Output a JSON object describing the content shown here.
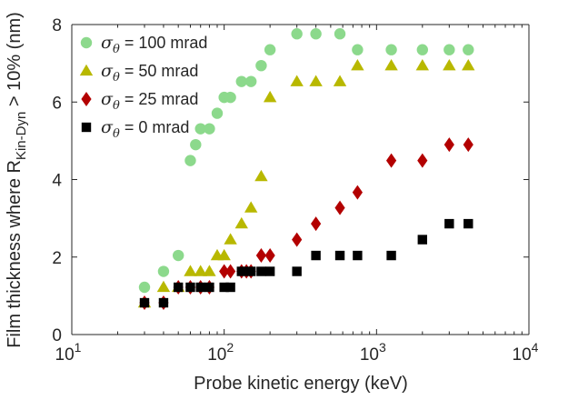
{
  "chart_data": {
    "type": "scatter",
    "title": "",
    "xlabel": "Probe kinetic energy (keV)",
    "ylabel": {
      "prefix": "Film thickness where R",
      "subscript": "Kin-Dyn",
      "suffix": " > 10% (nm)"
    },
    "xscale": "log",
    "xlim": [
      10,
      10000
    ],
    "ylim": [
      0,
      8
    ],
    "grid": false,
    "legend_position": "top-left",
    "x_ticks": [
      {
        "value": 10,
        "base": "10",
        "exp": "1"
      },
      {
        "value": 100,
        "base": "10",
        "exp": "2"
      },
      {
        "value": 1000,
        "base": "10",
        "exp": "3"
      },
      {
        "value": 10000,
        "base": "10",
        "exp": "4"
      }
    ],
    "y_ticks": [
      {
        "value": 0,
        "label": "0"
      },
      {
        "value": 2,
        "label": "2"
      },
      {
        "value": 4,
        "label": "4"
      },
      {
        "value": 6,
        "label": "6"
      },
      {
        "value": 8,
        "label": "8"
      }
    ],
    "series": [
      {
        "name": "σθ = 100 mrad",
        "legend_symbol": "σ",
        "legend_subscript": "θ",
        "legend_text": " = 100 mrad",
        "marker": "circle",
        "color": "#8cd98c",
        "x": [
          30,
          40,
          50,
          60,
          65,
          70,
          80,
          90,
          100,
          110,
          130,
          150,
          175,
          200,
          300,
          400,
          575,
          750,
          1250,
          2000,
          3000,
          4000
        ],
        "y": [
          1.22,
          1.63,
          2.04,
          4.49,
          4.9,
          5.31,
          5.31,
          5.71,
          6.12,
          6.12,
          6.53,
          6.53,
          6.94,
          7.35,
          7.76,
          7.76,
          7.76,
          7.35,
          7.35,
          7.35,
          7.35,
          7.35
        ]
      },
      {
        "name": "σθ = 50 mrad",
        "legend_symbol": "σ",
        "legend_subscript": "θ",
        "legend_text": " = 50 mrad",
        "marker": "triangle",
        "color": "#b8b800",
        "x": [
          30,
          40,
          50,
          60,
          70,
          80,
          90,
          100,
          110,
          130,
          150,
          175,
          200,
          300,
          400,
          575,
          750,
          1250,
          2000,
          3000,
          4000
        ],
        "y": [
          0.82,
          1.22,
          1.22,
          1.63,
          1.63,
          1.63,
          2.04,
          2.04,
          2.45,
          2.86,
          3.27,
          4.08,
          6.12,
          6.53,
          6.53,
          6.53,
          6.94,
          6.94,
          6.94,
          6.94,
          6.94
        ]
      },
      {
        "name": "σθ = 25 mrad",
        "legend_symbol": "σ",
        "legend_subscript": "θ",
        "legend_text": " = 25 mrad",
        "marker": "diamond",
        "color": "#b30000",
        "x": [
          30,
          40,
          50,
          60,
          70,
          80,
          100,
          110,
          130,
          140,
          150,
          175,
          200,
          300,
          400,
          575,
          750,
          1250,
          2000,
          3000,
          4000
        ],
        "y": [
          0.82,
          0.82,
          1.22,
          1.22,
          1.22,
          1.22,
          1.63,
          1.63,
          1.63,
          1.63,
          1.63,
          2.04,
          2.04,
          2.45,
          2.86,
          3.27,
          3.67,
          4.49,
          4.49,
          4.9,
          4.9
        ]
      },
      {
        "name": "σθ = 0 mrad",
        "legend_symbol": "σ",
        "legend_subscript": "θ",
        "legend_text": " = 0 mrad",
        "marker": "square",
        "color": "#000000",
        "x": [
          30,
          40,
          50,
          60,
          70,
          80,
          100,
          110,
          130,
          150,
          175,
          200,
          300,
          400,
          575,
          750,
          1250,
          2000,
          3000,
          4000
        ],
        "y": [
          0.82,
          0.82,
          1.22,
          1.22,
          1.22,
          1.22,
          1.22,
          1.22,
          1.63,
          1.63,
          1.63,
          1.63,
          1.63,
          2.04,
          2.04,
          2.04,
          2.04,
          2.45,
          2.86,
          2.86
        ]
      }
    ]
  }
}
